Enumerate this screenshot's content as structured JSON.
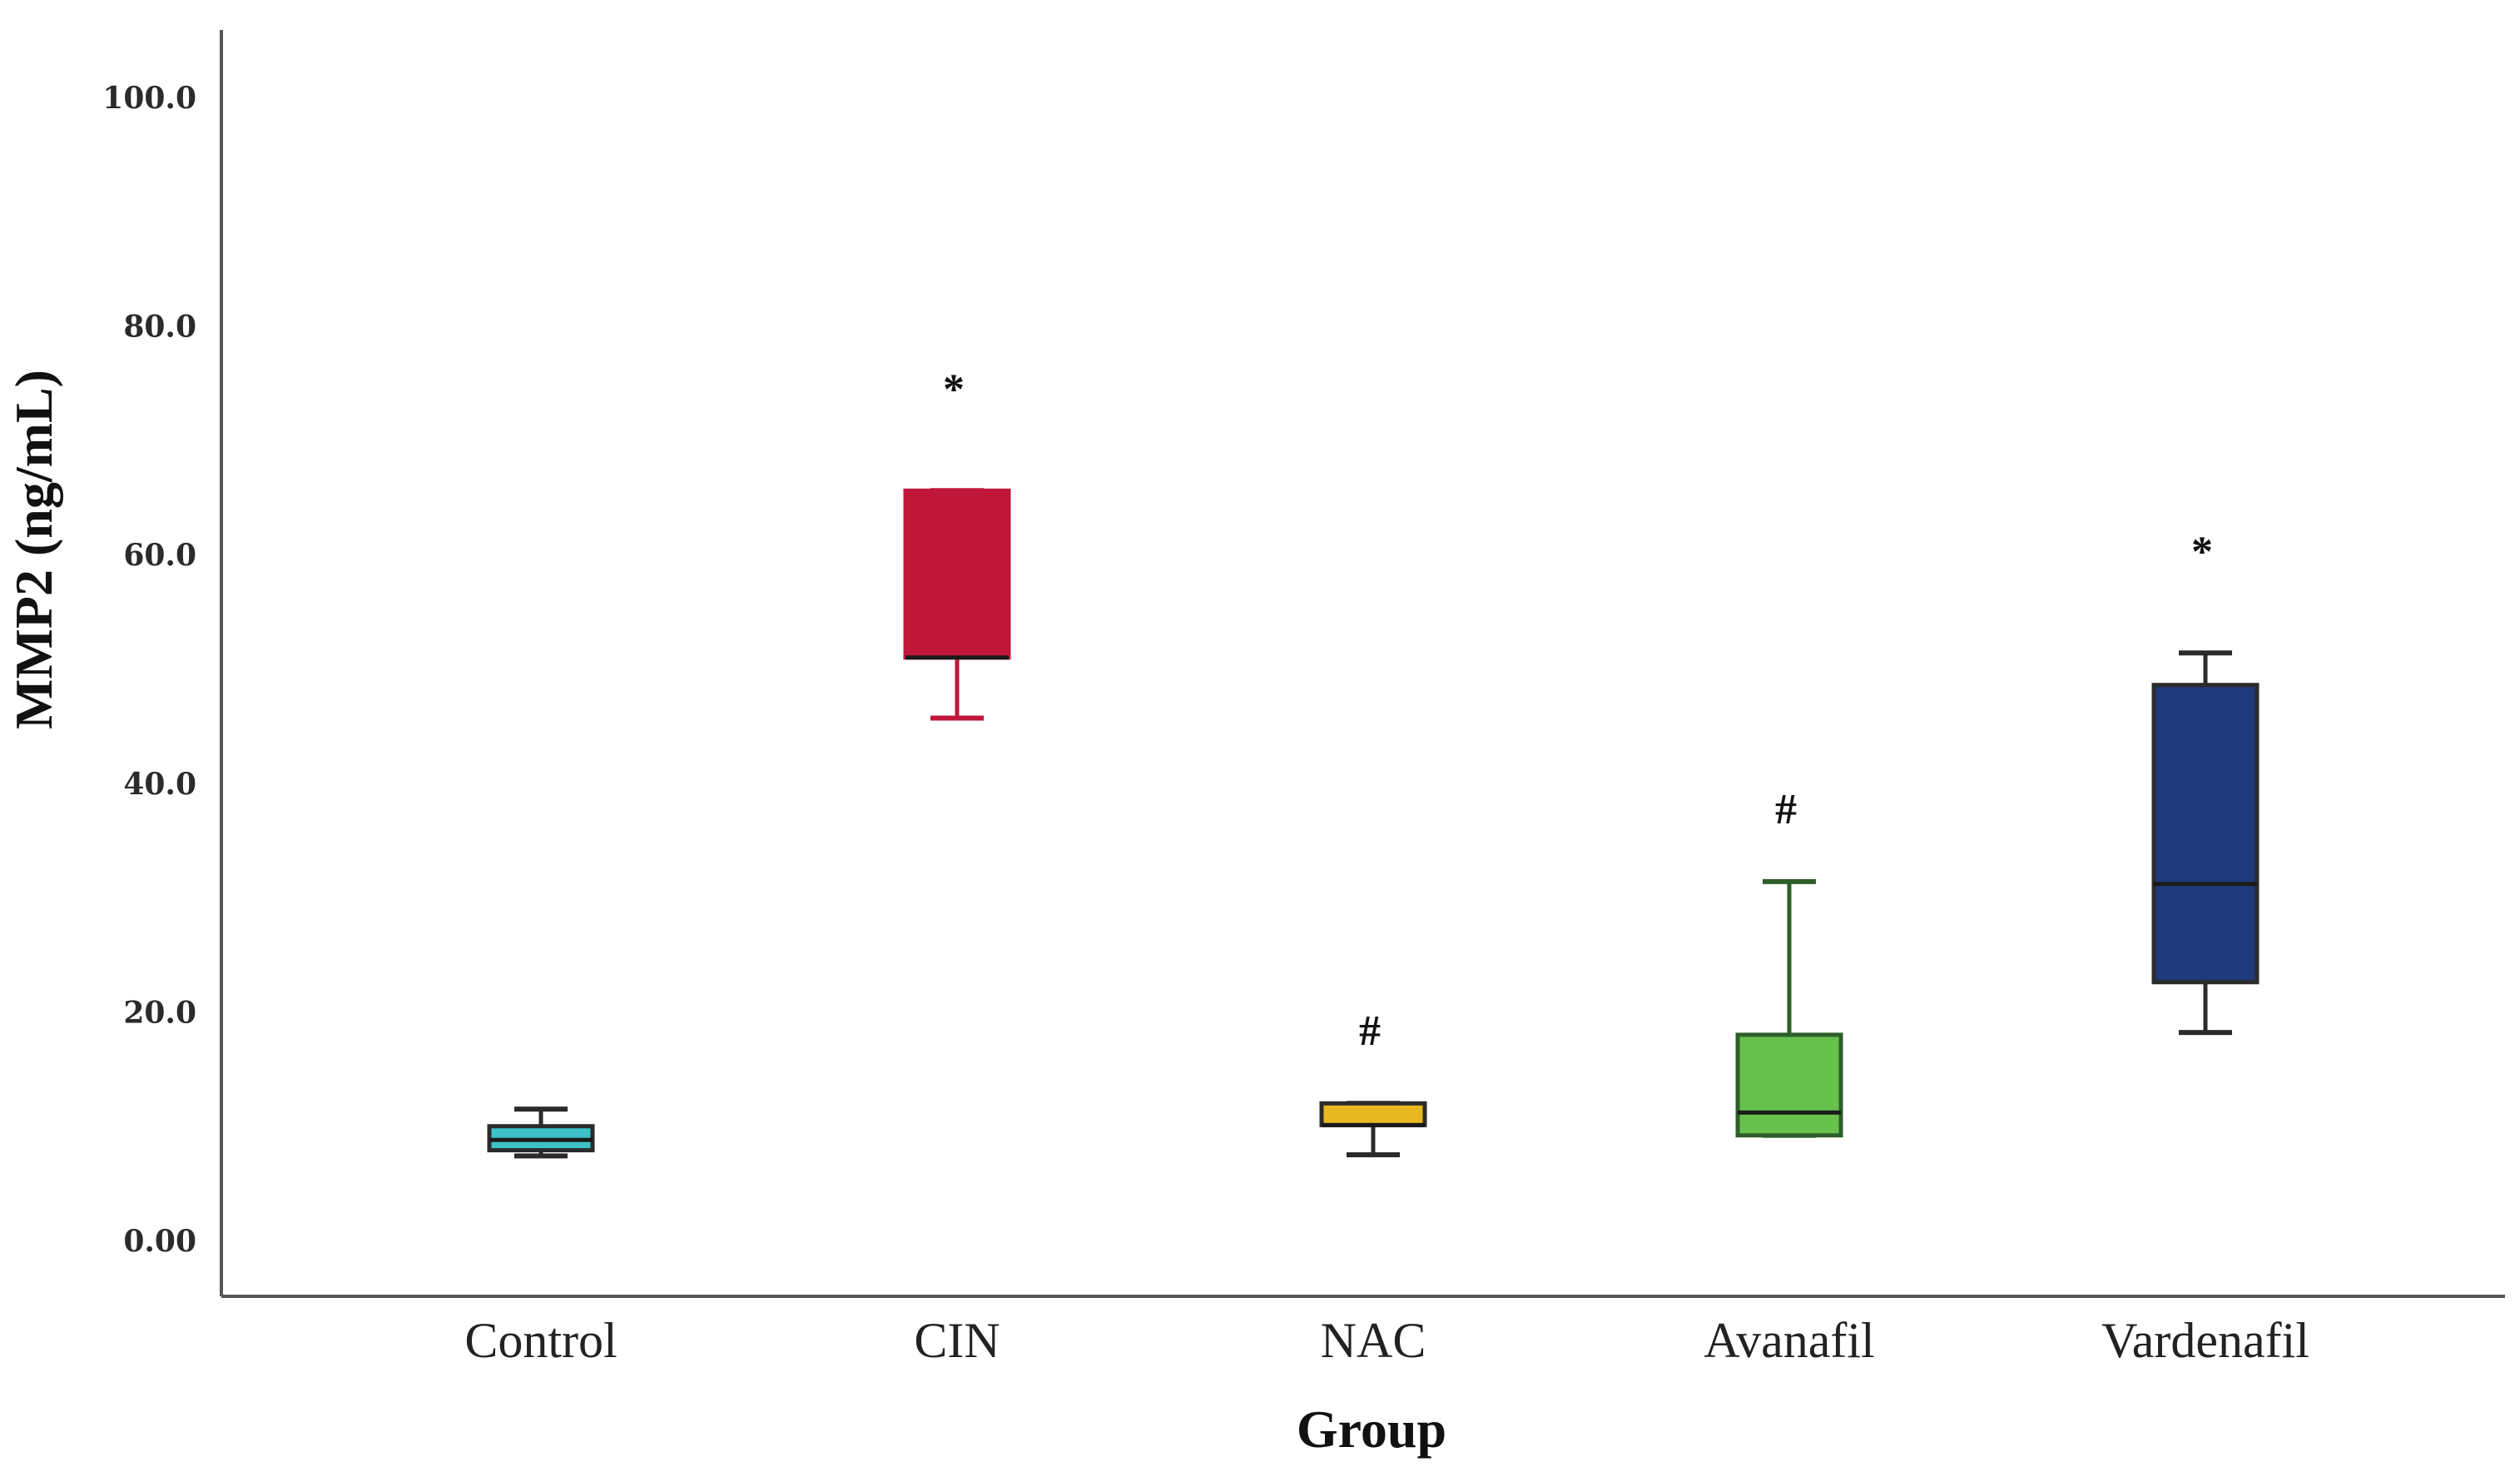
{
  "chart_data": {
    "type": "box",
    "xlabel": "Group",
    "ylabel": "MMP2 (ng/mL)",
    "ylim": [
      0,
      100
    ],
    "yticks": [
      0,
      20,
      40,
      60,
      80,
      100
    ],
    "ytick_labels": [
      "0.00",
      "20.0",
      "40.0",
      "60.0",
      "80.0",
      "100.0"
    ],
    "grid": false,
    "categories": [
      "Control",
      "CIN",
      "NAC",
      "Avanafil",
      "Vardenafil"
    ],
    "boxes": [
      {
        "category": "Control",
        "min": 7.4,
        "q1": 7.9,
        "median": 8.8,
        "q3": 10.0,
        "max": 11.5,
        "color": "#3cc2c8",
        "stroke": "#2b2b2b",
        "annotation": ""
      },
      {
        "category": "CIN",
        "min": 45.7,
        "q1": 51.0,
        "median": 51.0,
        "q3": 65.6,
        "max": 65.6,
        "color": "#c0163a",
        "stroke": "#c0163a",
        "annotation": "*"
      },
      {
        "category": "NAC",
        "min": 7.5,
        "q1": 10.1,
        "median": 10.1,
        "q3": 12.0,
        "max": 12.0,
        "color": "#e8b820",
        "stroke": "#2b2b2b",
        "annotation": "#"
      },
      {
        "category": "Avanafil",
        "min": 9.2,
        "q1": 9.2,
        "median": 11.2,
        "q3": 18.0,
        "max": 31.4,
        "color": "#66c14d",
        "stroke": "#2d5e2a",
        "annotation": "#"
      },
      {
        "category": "Vardenafil",
        "min": 18.2,
        "q1": 22.6,
        "median": 31.2,
        "q3": 48.6,
        "max": 51.4,
        "color": "#1e3a7a",
        "stroke": "#2b2b2b",
        "annotation": "*"
      }
    ]
  }
}
